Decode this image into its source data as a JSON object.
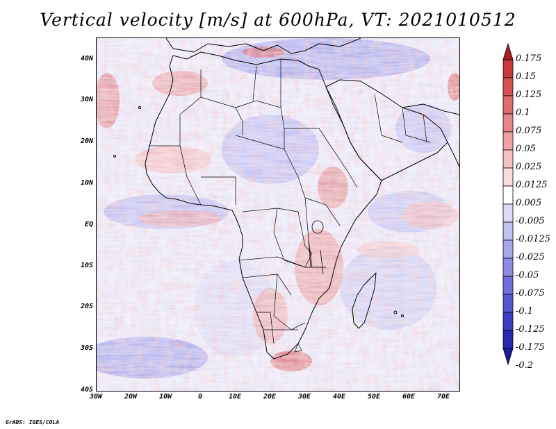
{
  "title": "Vertical velocity [m/s] at 600hPa, VT: 2021010512",
  "credit": "GrADS: IGES/COLA",
  "map": {
    "variable": "Vertical velocity",
    "units": "m/s",
    "level": "600hPa",
    "valid_time": "2021010512",
    "lat_labels": [
      "40N",
      "30N",
      "20N",
      "10N",
      "EQ",
      "10S",
      "20S",
      "30S",
      "40S"
    ],
    "lon_labels": [
      "30W",
      "20W",
      "10W",
      "0",
      "10E",
      "20E",
      "30E",
      "40E",
      "50E",
      "60E",
      "70E"
    ]
  },
  "colorbar": {
    "labels": [
      "0.175",
      "0.15",
      "0.125",
      "0.1",
      "0.075",
      "0.05",
      "0.025",
      "0.0125",
      "0.005",
      "-0.005",
      "-0.0125",
      "-0.025",
      "-0.05",
      "-0.075",
      "-0.1",
      "-0.125",
      "-0.175",
      "-0.2"
    ],
    "colors": [
      "#aa1f1f",
      "#c93838",
      "#d85252",
      "#e06d6d",
      "#e88787",
      "#f0a3a3",
      "#f6c0c0",
      "#fadcdc",
      "#ffffff",
      "#dcdcf8",
      "#c2c2f2",
      "#a7a7ec",
      "#8c8ce4",
      "#7070dc",
      "#5555d0",
      "#3c3cc4",
      "#2828b4",
      "#1a1a9a"
    ]
  },
  "colors": {
    "upward_accent": "#cc3333",
    "downward_accent": "#3333cc"
  }
}
